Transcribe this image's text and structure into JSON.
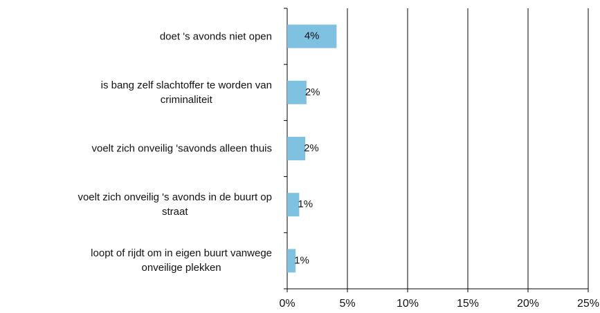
{
  "chart_data": {
    "type": "barh",
    "categories": [
      "doet 's avonds niet open",
      "is bang zelf slachtoffer te worden van\ncriminaliteit",
      "voelt zich onveilig 'savonds alleen thuis",
      "voelt zich onveilig 's avonds in de buurt op\nstraat",
      "loopt of rijdt om in eigen buurt vanwege\nonveilige plekken"
    ],
    "values": [
      4.1,
      1.6,
      1.5,
      1.0,
      0.7
    ],
    "value_labels": [
      "4%",
      "2%",
      "2%",
      "1%",
      "1%"
    ],
    "color": "#7fc1e1",
    "xlim": [
      0,
      25
    ],
    "xticks": [
      {
        "value": 0,
        "label": "0%"
      },
      {
        "value": 5,
        "label": "5%"
      },
      {
        "value": 10,
        "label": "10%"
      },
      {
        "value": 15,
        "label": "15%"
      },
      {
        "value": 20,
        "label": "20%"
      },
      {
        "value": 25,
        "label": "25%"
      }
    ],
    "grid": true
  }
}
